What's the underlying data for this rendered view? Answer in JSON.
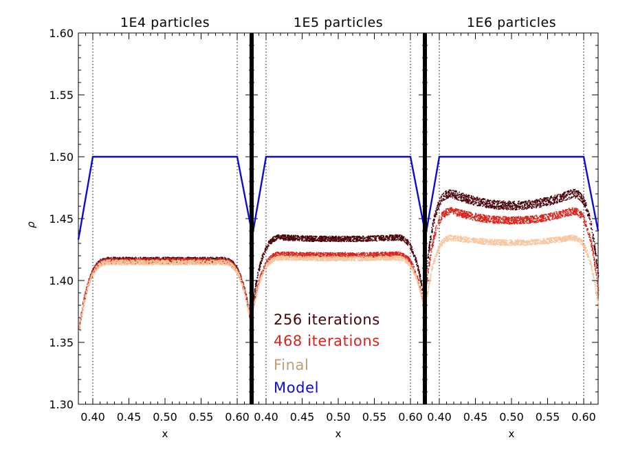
{
  "chart_data": {
    "type": "scatter",
    "ylabel": "ρ",
    "ylim": [
      1.3,
      1.6
    ],
    "xlim": [
      0.38,
      0.62
    ],
    "yticks": [
      1.3,
      1.35,
      1.4,
      1.45,
      1.5,
      1.55,
      1.6
    ],
    "ytick_labels": [
      "1.30",
      "1.35",
      "1.40",
      "1.45",
      "1.50",
      "1.55",
      "1.60"
    ],
    "xticks": [
      0.4,
      0.45,
      0.5,
      0.55,
      0.6
    ],
    "xtick_labels": [
      "0.40",
      "0.45",
      "0.50",
      "0.55",
      "0.60"
    ],
    "reference_lines_x": [
      0.4,
      0.6
    ],
    "legend": [
      {
        "label": "256 iterations",
        "color": "#4a0008"
      },
      {
        "label": "468 iterations",
        "color": "#d9241c"
      },
      {
        "label": "Final",
        "color": "#f7c79f"
      },
      {
        "label": "Model",
        "color": "#0b0bd6"
      }
    ],
    "model": {
      "x": [
        0.38,
        0.4,
        0.6,
        0.62
      ],
      "y": [
        1.433,
        1.5,
        1.5,
        1.44
      ]
    },
    "panels": [
      {
        "title": "1E4 particles",
        "xlabel": "x",
        "series": [
          {
            "name": "256 iterations",
            "plateau": 1.417,
            "edge": 1.36,
            "dome": 0.0,
            "width": 0.0045
          },
          {
            "name": "468 iterations",
            "plateau": 1.416,
            "edge": 1.36,
            "dome": 0.0,
            "width": 0.0045
          },
          {
            "name": "Final",
            "plateau": 1.415,
            "edge": 1.359,
            "dome": 0.0,
            "width": 0.004
          }
        ]
      },
      {
        "title": "1E5 particles",
        "xlabel": "x",
        "series": [
          {
            "name": "256 iterations",
            "plateau": 1.436,
            "edge": 1.378,
            "dome": 0.002,
            "width": 0.0045
          },
          {
            "name": "468 iterations",
            "plateau": 1.422,
            "edge": 1.373,
            "dome": 0.001,
            "width": 0.004
          },
          {
            "name": "Final",
            "plateau": 1.419,
            "edge": 1.372,
            "dome": 0.001,
            "width": 0.0035
          }
        ]
      },
      {
        "title": "1E6 particles",
        "xlabel": "x",
        "series": [
          {
            "name": "256 iterations",
            "plateau": 1.475,
            "edge": 1.401,
            "dome": 0.014,
            "width": 0.007
          },
          {
            "name": "468 iterations",
            "plateau": 1.46,
            "edge": 1.39,
            "dome": 0.011,
            "width": 0.006
          },
          {
            "name": "Final",
            "plateau": 1.437,
            "edge": 1.378,
            "dome": 0.006,
            "width": 0.0045
          }
        ]
      }
    ]
  }
}
